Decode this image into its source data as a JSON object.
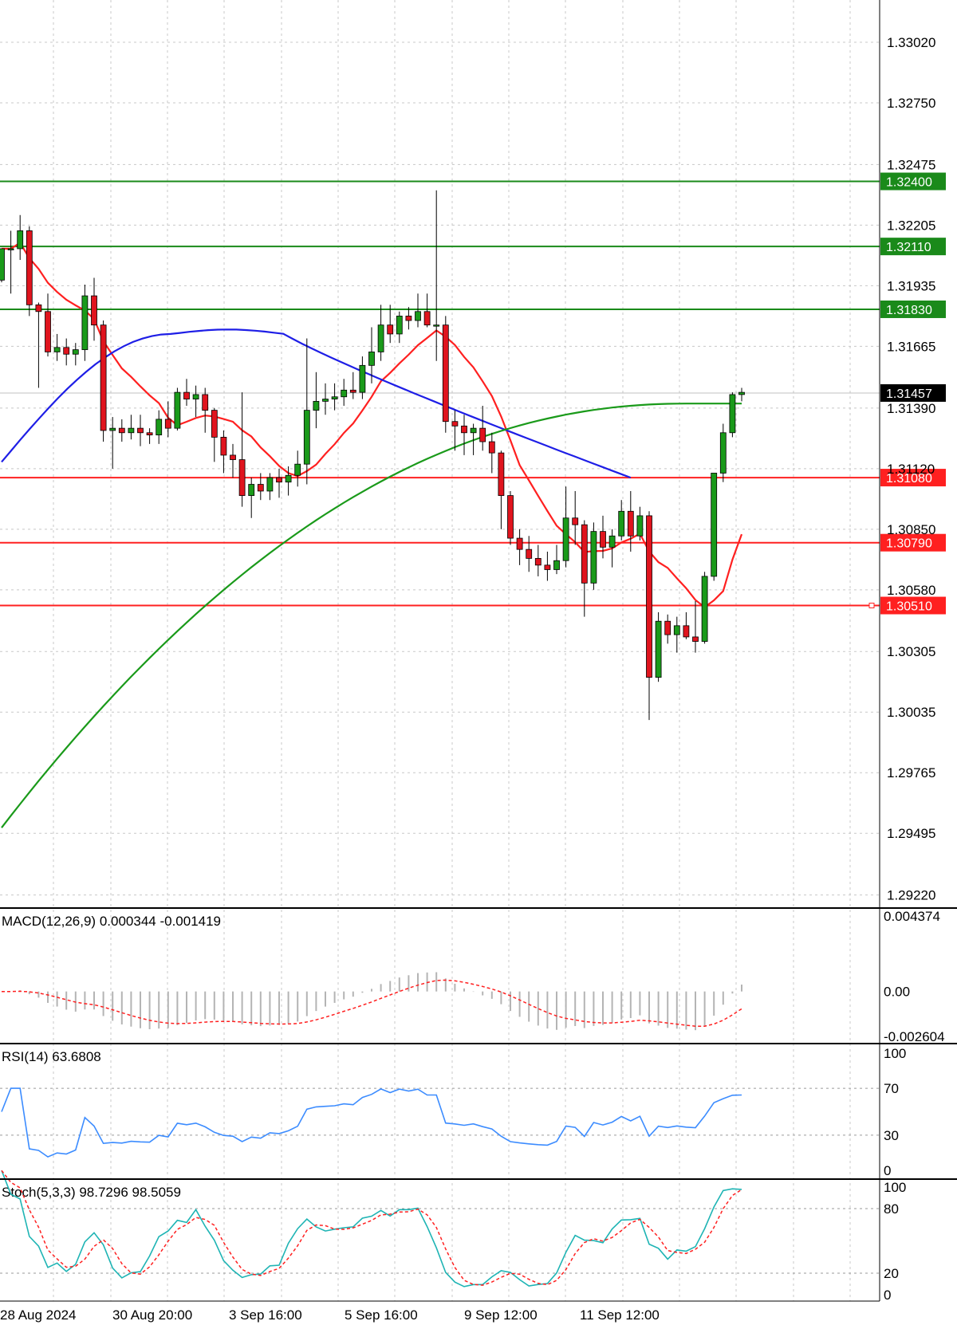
{
  "chart_data": {
    "type": "candlestick",
    "price_axis": {
      "ticks": [
        "1.33020",
        "1.32750",
        "1.32475",
        "1.32205",
        "1.31935",
        "1.31665",
        "1.31390",
        "1.31120",
        "1.30850",
        "1.30580",
        "1.30305",
        "1.30035",
        "1.29765",
        "1.29495",
        "1.29220"
      ],
      "current_price": "1.31457"
    },
    "time_axis": [
      "28 Aug 2024",
      "30 Aug 20:00",
      "3 Sep 16:00",
      "5 Sep 16:00",
      "9 Sep 12:00",
      "11 Sep 12:00"
    ],
    "levels": [
      {
        "label": "1.32400",
        "value": 1.324,
        "color": "#1a8a1a"
      },
      {
        "label": "1.32110",
        "value": 1.3211,
        "color": "#1a8a1a"
      },
      {
        "label": "1.31830",
        "value": 1.3183,
        "color": "#1a8a1a"
      },
      {
        "label": "1.31080",
        "value": 1.3108,
        "color": "#ff2020"
      },
      {
        "label": "1.30790",
        "value": 1.3079,
        "color": "#ff2020"
      },
      {
        "label": "1.30510",
        "value": 1.3051,
        "color": "#ff2020"
      }
    ],
    "candles": [
      [
        1.3196,
        1.3208,
        1.3195,
        1.321
      ],
      [
        1.321,
        1.3218,
        1.319,
        1.321
      ],
      [
        1.321,
        1.3225,
        1.3205,
        1.3218
      ],
      [
        1.3218,
        1.322,
        1.318,
        1.3185
      ],
      [
        1.3185,
        1.3186,
        1.3148,
        1.3182
      ],
      [
        1.3182,
        1.319,
        1.3162,
        1.3164
      ],
      [
        1.3164,
        1.3172,
        1.316,
        1.3166
      ],
      [
        1.3166,
        1.317,
        1.3158,
        1.3163
      ],
      [
        1.3163,
        1.3168,
        1.3158,
        1.3165
      ],
      [
        1.3165,
        1.3194,
        1.316,
        1.3189
      ],
      [
        1.3189,
        1.3197,
        1.3169,
        1.3176
      ],
      [
        1.3176,
        1.3178,
        1.3124,
        1.3129
      ],
      [
        1.3129,
        1.3135,
        1.3112,
        1.313
      ],
      [
        1.313,
        1.3134,
        1.3124,
        1.3128
      ],
      [
        1.3128,
        1.3136,
        1.3125,
        1.313
      ],
      [
        1.313,
        1.3136,
        1.3122,
        1.3128
      ],
      [
        1.3128,
        1.313,
        1.3123,
        1.3127
      ],
      [
        1.3127,
        1.3138,
        1.3123,
        1.3134
      ],
      [
        1.3134,
        1.3142,
        1.3126,
        1.313
      ],
      [
        1.313,
        1.3148,
        1.3129,
        1.3146
      ],
      [
        1.3146,
        1.3152,
        1.314,
        1.3143
      ],
      [
        1.3143,
        1.3149,
        1.3135,
        1.3145
      ],
      [
        1.3145,
        1.3148,
        1.3128,
        1.3138
      ],
      [
        1.3138,
        1.3139,
        1.3115,
        1.3126
      ],
      [
        1.3126,
        1.3129,
        1.311,
        1.3118
      ],
      [
        1.3118,
        1.3123,
        1.3108,
        1.3116
      ],
      [
        1.3116,
        1.3146,
        1.3095,
        1.31
      ],
      [
        1.31,
        1.3108,
        1.309,
        1.3105
      ],
      [
        1.3105,
        1.311,
        1.3098,
        1.3102
      ],
      [
        1.3102,
        1.311,
        1.3098,
        1.3108
      ],
      [
        1.3108,
        1.3112,
        1.3099,
        1.3106
      ],
      [
        1.3106,
        1.3113,
        1.31,
        1.3109
      ],
      [
        1.3109,
        1.312,
        1.3104,
        1.3114
      ],
      [
        1.3114,
        1.317,
        1.3105,
        1.3138
      ],
      [
        1.3138,
        1.3155,
        1.313,
        1.3142
      ],
      [
        1.3142,
        1.315,
        1.3136,
        1.3143
      ],
      [
        1.3143,
        1.315,
        1.3138,
        1.3144
      ],
      [
        1.3144,
        1.3152,
        1.314,
        1.3147
      ],
      [
        1.3147,
        1.3155,
        1.3143,
        1.3146
      ],
      [
        1.3146,
        1.3162,
        1.3143,
        1.3158
      ],
      [
        1.3158,
        1.3175,
        1.315,
        1.3164
      ],
      [
        1.3164,
        1.3185,
        1.316,
        1.3176
      ],
      [
        1.3176,
        1.3185,
        1.3168,
        1.3172
      ],
      [
        1.3172,
        1.3182,
        1.3168,
        1.318
      ],
      [
        1.318,
        1.3184,
        1.3174,
        1.3178
      ],
      [
        1.3178,
        1.319,
        1.3175,
        1.3182
      ],
      [
        1.3182,
        1.319,
        1.3175,
        1.3176
      ],
      [
        1.3176,
        1.3236,
        1.316,
        1.3176
      ],
      [
        1.3176,
        1.318,
        1.3128,
        1.3133
      ],
      [
        1.3133,
        1.3138,
        1.312,
        1.3131
      ],
      [
        1.3131,
        1.3136,
        1.3118,
        1.3128
      ],
      [
        1.3128,
        1.3132,
        1.3118,
        1.313
      ],
      [
        1.313,
        1.314,
        1.312,
        1.3124
      ],
      [
        1.3124,
        1.3128,
        1.311,
        1.3119
      ],
      [
        1.3119,
        1.312,
        1.3085,
        1.31
      ],
      [
        1.31,
        1.3102,
        1.3078,
        1.3081
      ],
      [
        1.3081,
        1.3085,
        1.3069,
        1.3076
      ],
      [
        1.3076,
        1.3082,
        1.3066,
        1.3072
      ],
      [
        1.3072,
        1.3078,
        1.3064,
        1.3069
      ],
      [
        1.3069,
        1.3075,
        1.3062,
        1.3067
      ],
      [
        1.3067,
        1.3078,
        1.3065,
        1.3071
      ],
      [
        1.3071,
        1.3104,
        1.3068,
        1.309
      ],
      [
        1.309,
        1.3102,
        1.3078,
        1.3087
      ],
      [
        1.3087,
        1.3089,
        1.3046,
        1.3061
      ],
      [
        1.3061,
        1.3088,
        1.3058,
        1.3084
      ],
      [
        1.3084,
        1.3091,
        1.3072,
        1.3077
      ],
      [
        1.3077,
        1.3085,
        1.3068,
        1.3082
      ],
      [
        1.3082,
        1.3098,
        1.308,
        1.3093
      ],
      [
        1.3093,
        1.3102,
        1.3075,
        1.3082
      ],
      [
        1.3082,
        1.3095,
        1.308,
        1.3091
      ],
      [
        1.3091,
        1.3093,
        1.3,
        1.3019
      ],
      [
        1.3019,
        1.3048,
        1.3017,
        1.3044
      ],
      [
        1.3044,
        1.3047,
        1.3034,
        1.3038
      ],
      [
        1.3038,
        1.3046,
        1.303,
        1.3042
      ],
      [
        1.3042,
        1.3048,
        1.3036,
        1.3037
      ],
      [
        1.3037,
        1.3053,
        1.303,
        1.3035
      ],
      [
        1.3035,
        1.3066,
        1.3034,
        1.3064
      ],
      [
        1.3064,
        1.311,
        1.3062,
        1.311
      ],
      [
        1.311,
        1.3132,
        1.3106,
        1.3128
      ],
      [
        1.3128,
        1.3146,
        1.3126,
        1.3145
      ],
      [
        1.3145,
        1.3148,
        1.3142,
        1.3146
      ]
    ],
    "indicators": {
      "macd": {
        "label": "MACD(12,26,9) 0.000344 -0.001419",
        "ticks": [
          "0.004374",
          "0.00",
          "-0.002604"
        ],
        "min": -0.002604,
        "max": 0.004374
      },
      "rsi": {
        "label": "RSI(14) 63.6808",
        "ticks": [
          "100",
          "70",
          "30",
          "0"
        ],
        "min": 0,
        "max": 100
      },
      "stoch": {
        "label": "Stoch(5,3,3) 98.7296 98.5059",
        "ticks": [
          "100",
          "80",
          "20",
          "0"
        ],
        "min": 0,
        "max": 100
      }
    }
  }
}
